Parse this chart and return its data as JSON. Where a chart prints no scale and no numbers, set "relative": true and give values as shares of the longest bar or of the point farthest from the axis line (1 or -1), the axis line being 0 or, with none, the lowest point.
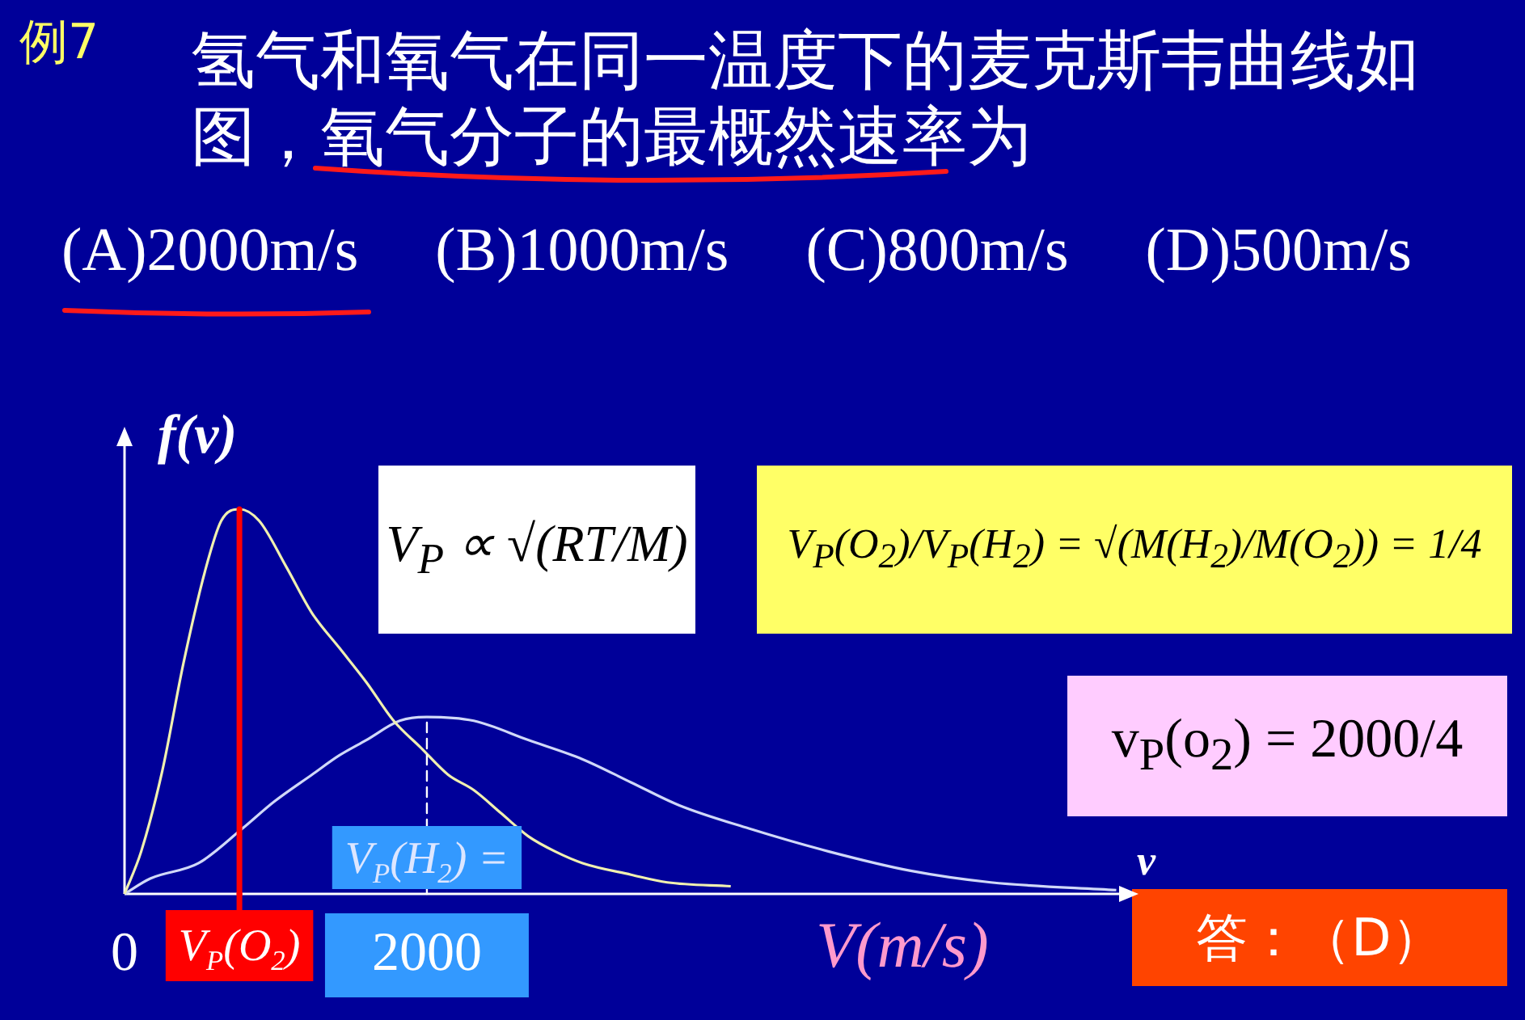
{
  "chart_data": {
    "type": "line",
    "title": "氢气和氧气在同一温度下的麦克斯韦曲线如图，氧气分子的最概然速率为",
    "subtitle": "(A)2000m/s     (B)1000m/s     (C)800m/s     (D)500m/s",
    "xlabel": "V(m/s)",
    "ylabel": "f(v)",
    "relative": true,
    "xlim": [
      0,
      6600
    ],
    "xticks": [
      0,
      2000
    ],
    "series": [
      {
        "color": "#f0f0b0",
        "x": [
          0,
          110,
          250,
          390,
          540,
          640,
          760,
          890,
          1070,
          1240,
          1420,
          1600,
          1780,
          1960,
          2140,
          2310,
          2490,
          2670,
          2850,
          3030,
          3350,
          3590,
          4010
        ],
        "values": [
          0,
          0.11,
          0.32,
          0.6,
          0.85,
          0.97,
          1,
          0.97,
          0.85,
          0.73,
          0.64,
          0.55,
          0.45,
          0.38,
          0.31,
          0.27,
          0.21,
          0.15,
          0.11,
          0.08,
          0.05,
          0.03,
          0.02
        ]
      },
      {
        "color": "#d0d8f8",
        "x": [
          0,
          170,
          490,
          780,
          990,
          1240,
          1420,
          1600,
          1820,
          2000,
          2310,
          2670,
          3030,
          3350,
          3670,
          4130,
          4660,
          5200,
          5730,
          6560
        ],
        "values": [
          0,
          0.04,
          0.08,
          0.17,
          0.24,
          0.31,
          0.36,
          0.4,
          0.45,
          0.46,
          0.45,
          0.4,
          0.35,
          0.29,
          0.23,
          0.17,
          0.11,
          0.06,
          0.03,
          0.01
        ]
      }
    ],
    "ref_lines": [
      {
        "axis": "x",
        "value": 760,
        "label": "V$_{P}$(O$_{2}$)",
        "color": "#ff0000",
        "line_style": "solid"
      },
      {
        "axis": "x",
        "value": 2000,
        "label": "V$_{P}$(H$_{2}$) =",
        "color": "#ffffff",
        "line_style": "dashed"
      }
    ],
    "annotations": [
      "例7",
      "v",
      "V$_{P}$ ∝ √(RT/M)",
      "V$_{P}$(O$_{2}$)/V$_{P}$(H$_{2}$) = √(M(H$_{2}$)/M(O$_{2}$)) = 1/4",
      "v$_{P}$(o$_{2}$) = 2000/4",
      "答：（D）"
    ]
  }
}
